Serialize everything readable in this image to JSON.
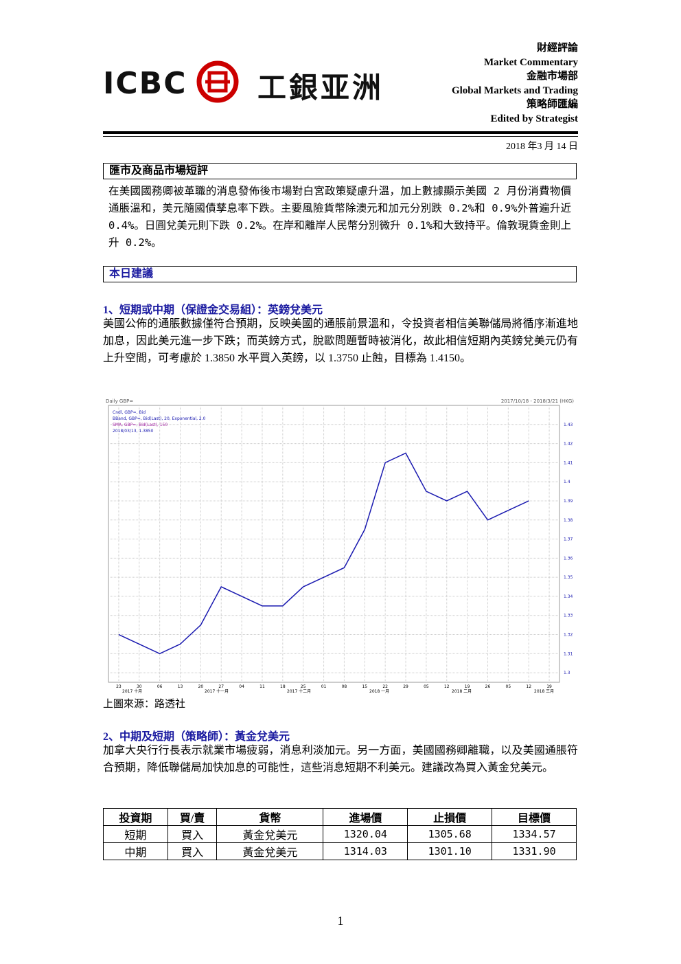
{
  "header": {
    "logo_en": "ICBC",
    "logo_cn": "工銀亚洲",
    "lines": [
      "財經評論",
      "Market Commentary",
      "金融市場部",
      "Global Markets and Trading",
      "策略師匯編",
      "Edited by Strategist"
    ],
    "date": "2018 年3 月 14 日"
  },
  "section1": {
    "heading": "匯市及商品市場短評",
    "body": "在美國國務卿被革職的消息發佈後市場對白宮政策疑慮升溫，加上數據顯示美國 2 月份消費物價通脹溫和，美元隨國債孳息率下跌。主要風險貨幣除澳元和加元分別跌 0.2%和 0.9%外普遍升近 0.4%。日圓兌美元則下跌 0.2%。在岸和離岸人民幣分別微升 0.1%和大致持平。倫敦現貨金則上升 0.2%。"
  },
  "section2": {
    "heading": "本日建議",
    "item1": {
      "title": "1、短期或中期（保證金交易組）：英鎊兌美元",
      "body": "美國公佈的通脹數據僅符合預期，反映美國的通脹前景溫和，令投資者相信美聯儲局將循序漸進地加息，因此美元進一步下跌；而英鎊方式，脫歐問題暫時被消化，故此相信短期內英鎊兌美元仍有上升空間，可考慮於 1.3850 水平買入英鎊，以 1.3750 止蝕，目標為 1.4150。"
    },
    "chart_source": "上圖來源：路透社",
    "item2": {
      "title": "2、中期及短期（策略師）：黃金兌美元",
      "body": "加拿大央行行長表示就業市場疲弱，消息利淡加元。另一方面，美國國務卿離職，以及美國通脹符合預期，降低聯儲局加快加息的可能性，這些消息短期不利美元。建議改為買入黃金兌美元。"
    }
  },
  "table": {
    "header": [
      "投資期",
      "買/賣",
      "貨幣",
      "進場價",
      "止損價",
      "目標價"
    ],
    "rows": [
      [
        "短期",
        "買入",
        "黃金兌美元",
        "1320.04",
        "1305.68",
        "1334.57"
      ],
      [
        "中期",
        "買入",
        "黃金兌美元",
        "1314.03",
        "1301.10",
        "1331.90"
      ]
    ]
  },
  "page_number": "1",
  "chart_data": {
    "type": "line",
    "title": "Daily GBP=",
    "subtitle": "2017/10/18 - 2018/3/21 (HKG)",
    "legend": [
      "Cndl, GBP=, Bid",
      "BBand, GBP=, Bid(Last), 20, Exponential, 2.0",
      "SMA, GBP=, Bid(Last), 150",
      "2018/03/13, 1.3850"
    ],
    "categories": [
      "23",
      "30",
      "06",
      "13",
      "20",
      "27",
      "04",
      "11",
      "18",
      "25",
      "01",
      "08",
      "15",
      "22",
      "29",
      "05",
      "12",
      "19",
      "26",
      "05",
      "12",
      "19"
    ],
    "months": [
      "2017 十月",
      "2017 十一月",
      "2017 十二月",
      "2018 一月",
      "2018 二月",
      "2018 三月"
    ],
    "series": [
      {
        "name": "GBP=",
        "color": "#1a1ab0",
        "values": [
          1.32,
          1.315,
          1.31,
          1.315,
          1.325,
          1.345,
          1.34,
          1.335,
          1.335,
          1.345,
          1.35,
          1.355,
          1.375,
          1.41,
          1.415,
          1.395,
          1.39,
          1.395,
          1.38,
          1.385,
          1.39,
          null
        ]
      }
    ],
    "ylim": [
      1.295,
      1.44
    ],
    "yticks": [
      1.3,
      1.31,
      1.32,
      1.33,
      1.34,
      1.35,
      1.36,
      1.37,
      1.38,
      1.39,
      1.4,
      1.41,
      1.42,
      1.43
    ],
    "grid": true
  }
}
